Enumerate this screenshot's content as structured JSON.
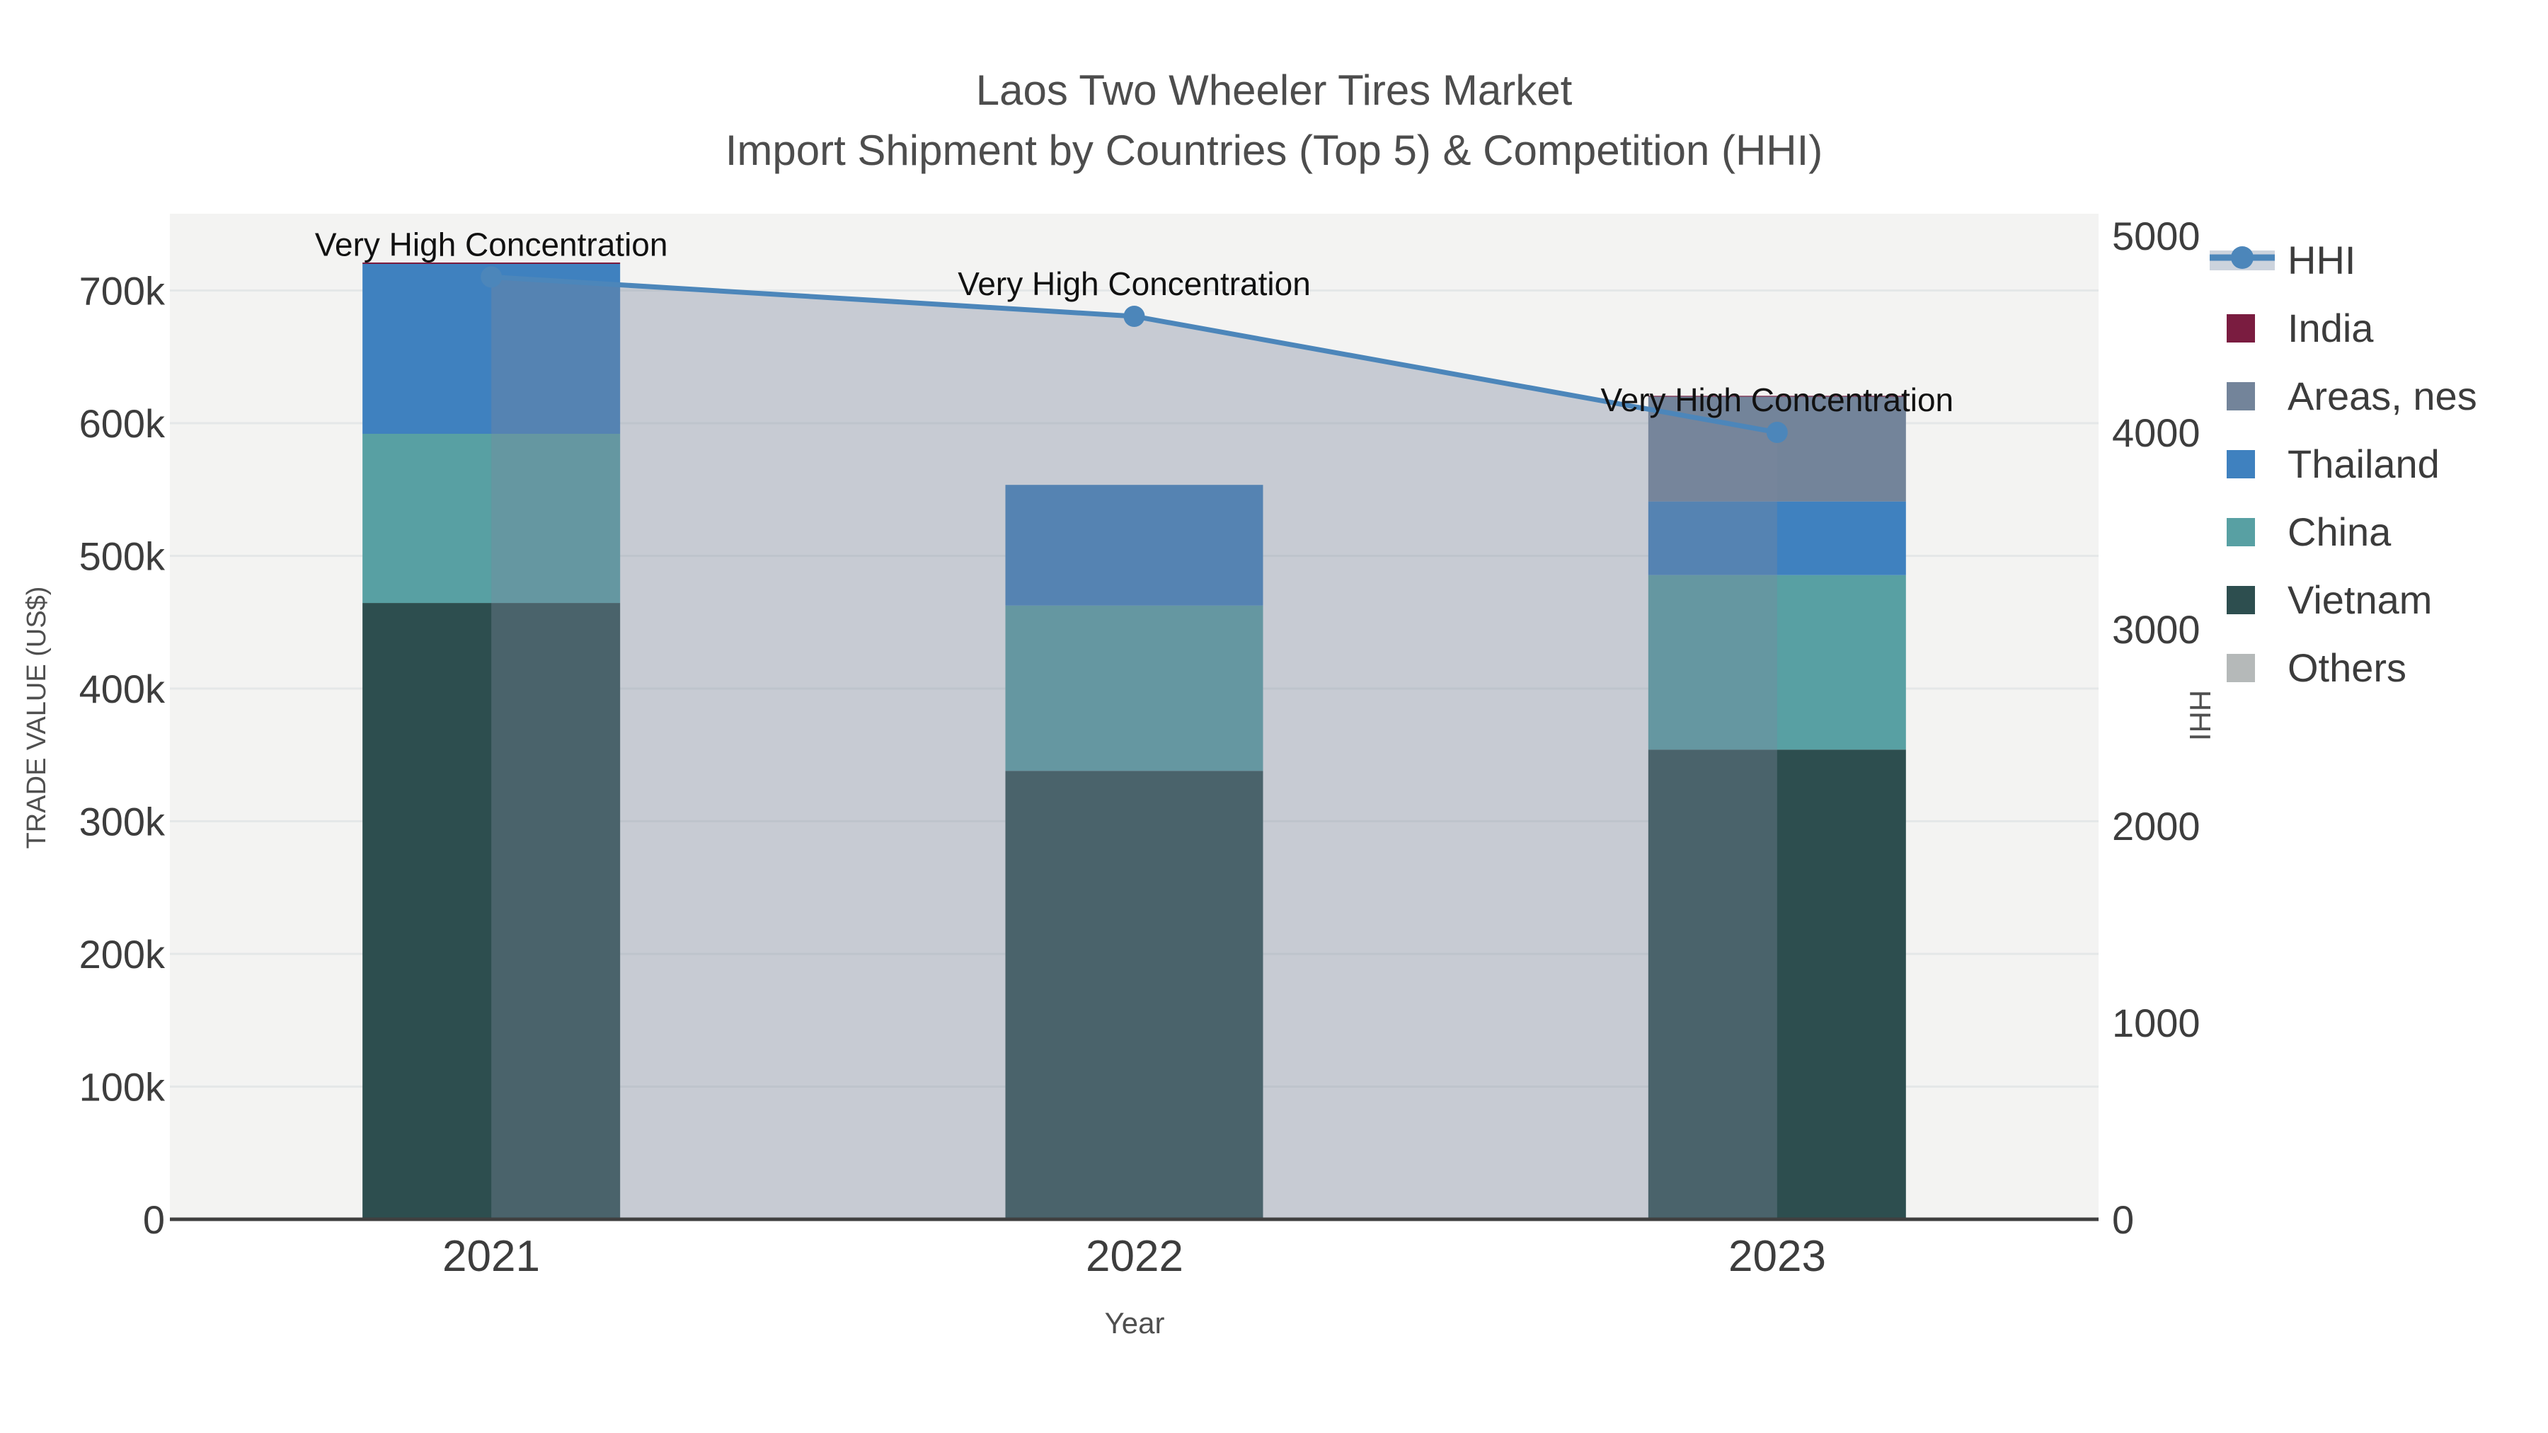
{
  "chart_data": {
    "type": "bar+line",
    "title": "Laos Two Wheeler Tires Market",
    "subtitle": "Import Shipment by Countries (Top 5) & Competition (HHI)",
    "xlabel": "Year",
    "ylabel_left": "TRADE VALUE (US$)",
    "ylabel_right": "HHI",
    "categories": [
      "2021",
      "2022",
      "2023"
    ],
    "stacking_note": "bars stacked bottom-up: Others, Vietnam, China, Thailand, Areas nes, India",
    "series": [
      {
        "name": "India",
        "color": "#7a1c40",
        "values": [
          1100,
          0,
          600
        ]
      },
      {
        "name": "Areas, nes",
        "color": "#73849a",
        "values": [
          0,
          0,
          79000
        ]
      },
      {
        "name": "Thailand",
        "color": "#3f81bf",
        "values": [
          128000,
          91000,
          55500
        ]
      },
      {
        "name": "China",
        "color": "#58a0a3",
        "values": [
          127500,
          124500,
          131500
        ]
      },
      {
        "name": "Vietnam",
        "color": "#2d4e4f",
        "values": [
          464500,
          338000,
          354000
        ]
      },
      {
        "name": "Others",
        "color": "#b5b9b9",
        "values": [
          0,
          0,
          0
        ]
      }
    ],
    "bar_totals": [
      721100,
      553500,
      620600
    ],
    "hhi_line": {
      "label": "HHI",
      "color": "#4c86ba",
      "area_fill": "rgba(125,136,156,0.37)",
      "marker": "circle",
      "values": [
        4790,
        4590,
        4000
      ]
    },
    "annotations": [
      "Very High Concentration",
      "Very High Concentration",
      "Very High Concentration"
    ],
    "axes": {
      "left": {
        "range": [
          0,
          756000
        ],
        "grid": true,
        "ticks": [
          {
            "label": "0",
            "value": 0
          },
          {
            "label": "100k",
            "value": 100000
          },
          {
            "label": "200k",
            "value": 200000
          },
          {
            "label": "300k",
            "value": 300000
          },
          {
            "label": "400k",
            "value": 400000
          },
          {
            "label": "500k",
            "value": 500000
          },
          {
            "label": "600k",
            "value": 600000
          },
          {
            "label": "700k",
            "value": 700000
          }
        ]
      },
      "right": {
        "range": [
          0,
          5100
        ],
        "grid": false,
        "ticks": [
          {
            "label": "0",
            "value": 0
          },
          {
            "label": "1000",
            "value": 1000
          },
          {
            "label": "2000",
            "value": 2000
          },
          {
            "label": "3000",
            "value": 3000
          },
          {
            "label": "4000",
            "value": 4000
          },
          {
            "label": "5000",
            "value": 5000
          }
        ]
      }
    },
    "legend": {
      "position": "right-top",
      "entries": [
        "HHI",
        "India",
        "Areas, nes",
        "Thailand",
        "China",
        "Vietnam",
        "Others"
      ]
    },
    "style": {
      "plot_bg": "#f3f3f2",
      "grid_color": "#e4e7e8",
      "spine_color": "#3f3f3f",
      "hhi_legend_band": "#ccd3dd"
    }
  }
}
